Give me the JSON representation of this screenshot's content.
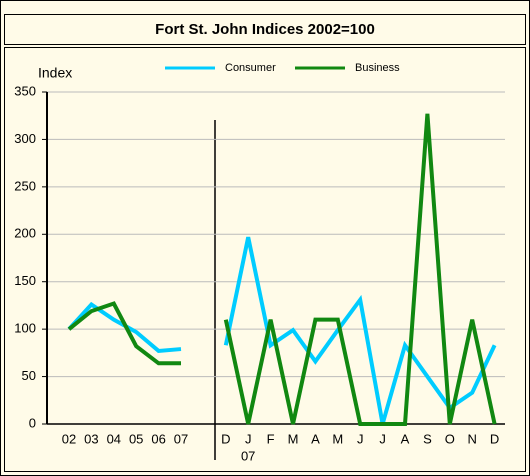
{
  "chart_data": {
    "type": "line",
    "title": "Fort St. John Indices   2002=100",
    "ylabel": "Index",
    "categories": [
      "02",
      "03",
      "04",
      "05",
      "06",
      "07",
      null,
      "D",
      "J",
      "F",
      "M",
      "A",
      "M",
      "J",
      "J",
      "A",
      "S",
      "O",
      "N",
      "D"
    ],
    "year_label": "07",
    "series": [
      {
        "name": "Consumer",
        "color": "#00ccff",
        "values": [
          100,
          126,
          110,
          97,
          77,
          79,
          null,
          83,
          197,
          83,
          99,
          66,
          99,
          131,
          0,
          83,
          50,
          17,
          33,
          83
        ]
      },
      {
        "name": "Business",
        "color": "#118811",
        "values": [
          100,
          119,
          127,
          82,
          64,
          64,
          null,
          110,
          0,
          110,
          0,
          110,
          110,
          0,
          0,
          0,
          327,
          0,
          110,
          0
        ]
      }
    ],
    "ylim": [
      0,
      350
    ],
    "yticks": [
      0,
      50,
      100,
      150,
      200,
      250,
      300,
      350
    ],
    "grid": true,
    "legend": "top"
  }
}
